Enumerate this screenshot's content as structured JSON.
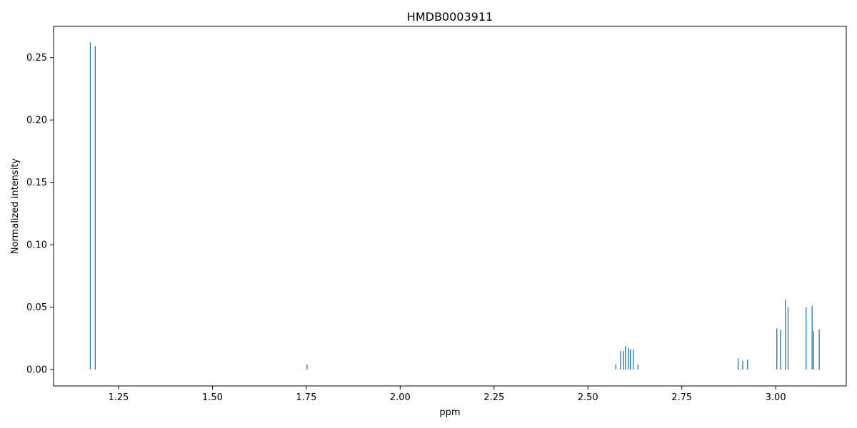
{
  "chart_data": {
    "type": "bar",
    "title": "HMDB0003911",
    "xlabel": "ppm",
    "ylabel": "Normalized intensity",
    "xlim": [
      1.077,
      3.188
    ],
    "ylim": [
      -0.0131,
      0.275
    ],
    "xticks": [
      "1.25",
      "1.50",
      "1.75",
      "2.00",
      "2.25",
      "2.50",
      "2.75",
      "3.00"
    ],
    "xtick_values": [
      1.25,
      1.5,
      1.75,
      2.0,
      2.25,
      2.5,
      2.75,
      3.0
    ],
    "yticks": [
      "0.00",
      "0.05",
      "0.10",
      "0.15",
      "0.20",
      "0.25"
    ],
    "ytick_values": [
      0.0,
      0.05,
      0.1,
      0.15,
      0.2,
      0.25
    ],
    "grid": false,
    "legend": "none",
    "color": "#1f77b4",
    "peaks": [
      {
        "x": 1.175,
        "y": 0.262
      },
      {
        "x": 1.188,
        "y": 0.259
      },
      {
        "x": 1.752,
        "y": 0.004
      },
      {
        "x": 2.574,
        "y": 0.004
      },
      {
        "x": 2.587,
        "y": 0.015
      },
      {
        "x": 2.595,
        "y": 0.015
      },
      {
        "x": 2.6,
        "y": 0.019
      },
      {
        "x": 2.608,
        "y": 0.017
      },
      {
        "x": 2.613,
        "y": 0.016
      },
      {
        "x": 2.621,
        "y": 0.016
      },
      {
        "x": 2.633,
        "y": 0.004
      },
      {
        "x": 2.9,
        "y": 0.009
      },
      {
        "x": 2.912,
        "y": 0.007
      },
      {
        "x": 2.925,
        "y": 0.008
      },
      {
        "x": 3.003,
        "y": 0.033
      },
      {
        "x": 3.013,
        "y": 0.032
      },
      {
        "x": 3.026,
        "y": 0.056
      },
      {
        "x": 3.033,
        "y": 0.05
      },
      {
        "x": 3.081,
        "y": 0.05
      },
      {
        "x": 3.097,
        "y": 0.051
      },
      {
        "x": 3.101,
        "y": 0.031
      },
      {
        "x": 3.116,
        "y": 0.032
      }
    ]
  }
}
